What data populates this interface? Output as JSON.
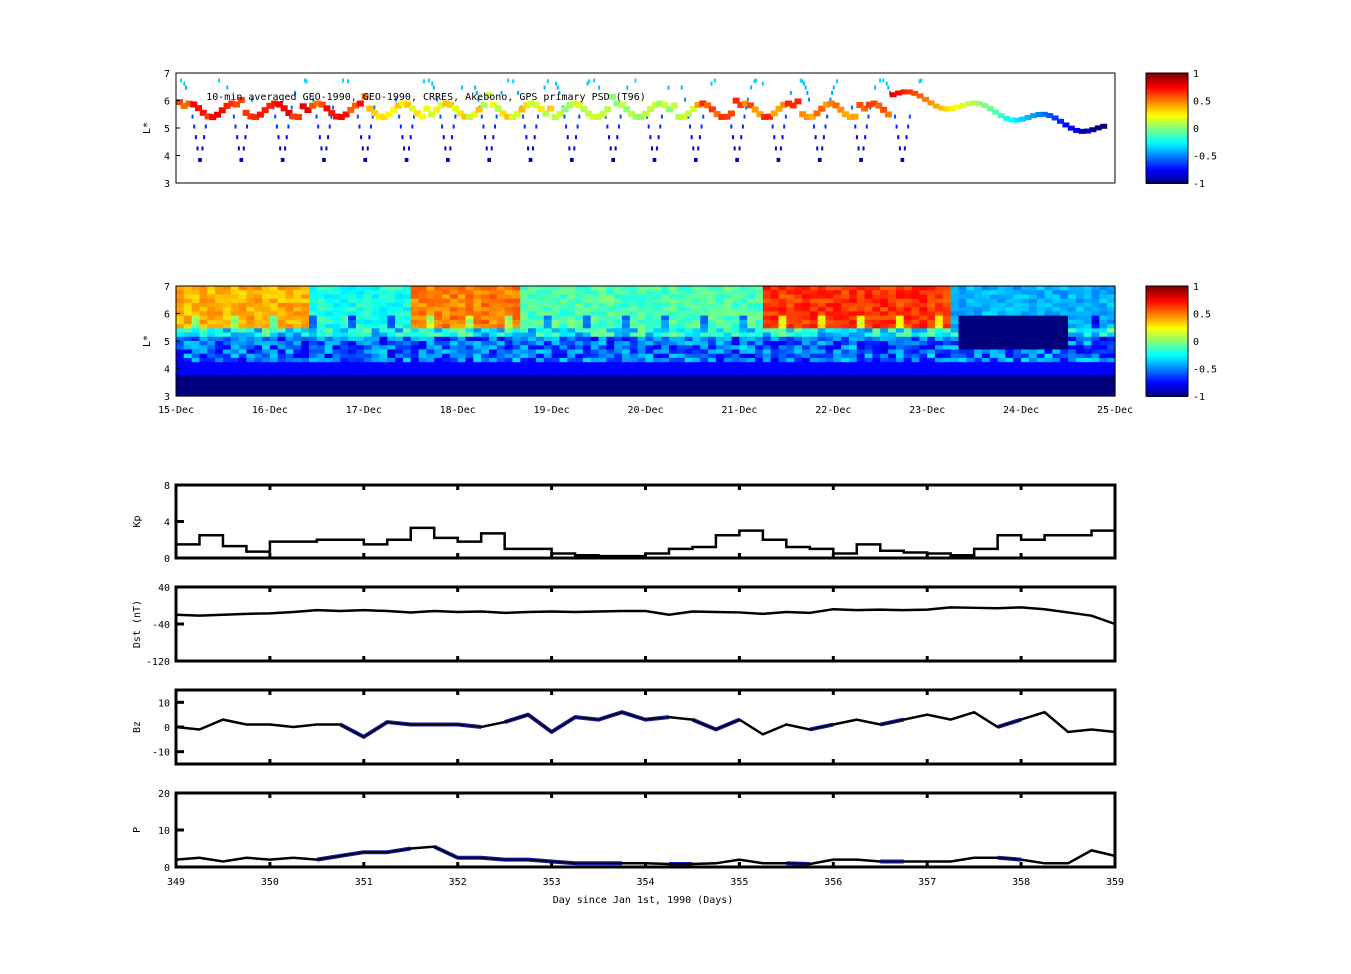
{
  "chart_data": [
    {
      "type": "heatmap",
      "name": "psd-observations",
      "title": "10-min averaged GEO-1990, GEO-1990, CRRES, Akebono, GPS  primary PSD (T96)",
      "ylabel": "L*",
      "ylim": [
        3,
        7
      ],
      "yticks": [
        "3",
        "4",
        "5",
        "6",
        "7"
      ],
      "colorbar": {
        "range": [
          -1,
          1
        ],
        "ticks": [
          "1",
          "0.5",
          "0",
          "-0.5",
          "-1"
        ]
      }
    },
    {
      "type": "heatmap",
      "name": "psd-reanalysis",
      "ylabel": "L*",
      "ylim": [
        3,
        7
      ],
      "yticks": [
        "3",
        "4",
        "5",
        "6",
        "7"
      ],
      "xticks": [
        "15-Dec",
        "16-Dec",
        "17-Dec",
        "18-Dec",
        "19-Dec",
        "20-Dec",
        "21-Dec",
        "22-Dec",
        "23-Dec",
        "24-Dec",
        "25-Dec"
      ],
      "colorbar": {
        "range": [
          -1,
          1
        ],
        "ticks": [
          "1",
          "0.5",
          "0",
          "-0.5",
          "-1"
        ]
      }
    },
    {
      "type": "line",
      "name": "kp",
      "ylabel": "Kp",
      "ylim": [
        0,
        8
      ],
      "yticks": [
        "0",
        "4",
        "8"
      ],
      "x_start": 349,
      "x_step": 0.25,
      "values": [
        1.5,
        2.5,
        1.3,
        0.7,
        1.8,
        1.8,
        2,
        2,
        1.5,
        2,
        3.3,
        2.2,
        1.8,
        2.7,
        1,
        1,
        0.5,
        0.3,
        0.2,
        0.2,
        0.5,
        1,
        1.2,
        2.5,
        3,
        2,
        1.2,
        1,
        0.5,
        1.5,
        0.8,
        0.6,
        0.5,
        0.3,
        1,
        2.5,
        2,
        2.5,
        2.5,
        3,
        4
      ]
    },
    {
      "type": "line",
      "name": "dst",
      "ylabel": "Dst (nT)",
      "ylim": [
        -120,
        40
      ],
      "yticks": [
        "-120",
        "-40",
        "40"
      ],
      "x_start": 349,
      "x_step": 0.25,
      "values": [
        -20,
        -22,
        -20,
        -18,
        -17,
        -14,
        -10,
        -12,
        -10,
        -12,
        -15,
        -12,
        -14,
        -13,
        -16,
        -14,
        -13,
        -14,
        -13,
        -12,
        -12,
        -20,
        -13,
        -14,
        -15,
        -18,
        -14,
        -16,
        -8,
        -10,
        -9,
        -10,
        -9,
        -4,
        -5,
        -6,
        -4,
        -8,
        -15,
        -22,
        -40
      ]
    },
    {
      "type": "line",
      "name": "bz",
      "ylabel": "Bz",
      "ylim": [
        -15,
        15
      ],
      "yticks": [
        "-10",
        "0",
        "10"
      ],
      "x_start": 349,
      "x_step": 0.25,
      "values": [
        0,
        -1,
        3,
        1,
        1,
        0,
        1,
        1,
        -4,
        2,
        1,
        1,
        1,
        0,
        2,
        5,
        -2,
        4,
        3,
        6,
        3,
        4,
        3,
        -1,
        3,
        -3,
        1,
        -1,
        1,
        3,
        1,
        3,
        5,
        3,
        6,
        0,
        3,
        6,
        -2,
        -1,
        -2
      ],
      "highlight_ranges": [
        [
          350.6,
          352.3
        ],
        [
          352.4,
          354.3
        ],
        [
          354.4,
          355.1
        ],
        [
          355.6,
          356.1
        ],
        [
          356.4,
          356.9
        ],
        [
          357.7,
          358
        ]
      ]
    },
    {
      "type": "line",
      "name": "pressure",
      "ylabel": "P",
      "ylim": [
        0,
        20
      ],
      "yticks": [
        "0",
        "10",
        "20"
      ],
      "x_start": 349,
      "x_step": 0.25,
      "values": [
        2,
        2.5,
        1.5,
        2.5,
        2,
        2.5,
        2,
        3,
        4,
        4,
        5,
        5.5,
        2.5,
        2.5,
        2,
        2,
        1.5,
        1,
        1,
        1,
        1,
        0.8,
        0.8,
        1,
        2,
        1,
        1,
        0.8,
        2,
        2,
        1.5,
        1.5,
        1.5,
        1.5,
        2.5,
        2.5,
        2,
        1,
        1,
        4.5,
        3
      ],
      "highlight_ranges": [
        [
          350.4,
          351.7
        ],
        [
          351.7,
          353.8
        ],
        [
          354.2,
          354.5
        ],
        [
          355.5,
          355.9
        ],
        [
          356.4,
          356.9
        ],
        [
          357.6,
          358
        ]
      ],
      "xlabel": "Day since Jan 1st, 1990 (Days)",
      "xticks": [
        "349",
        "350",
        "351",
        "352",
        "353",
        "354",
        "355",
        "356",
        "357",
        "358",
        "359"
      ]
    }
  ]
}
